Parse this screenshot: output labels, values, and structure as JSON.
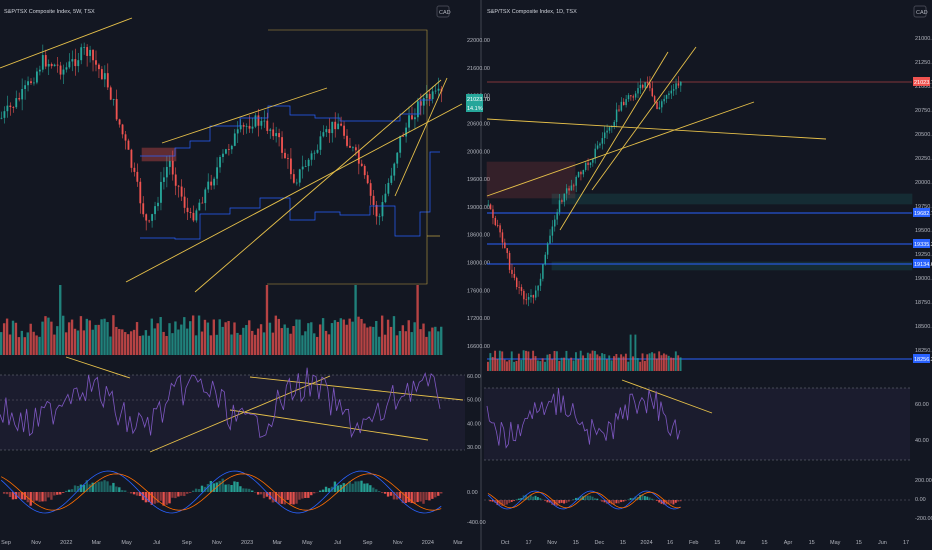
{
  "colors": {
    "background": "#131722",
    "up": "#26a69a",
    "down": "#ef5350",
    "trendline": "#e6c04a",
    "level_line": "#2962ff",
    "rsi_line": "#7e57c2",
    "macd_line": "#2962ff",
    "signal_line": "#ff6d00"
  },
  "left_chart": {
    "title": "S&P/TSX Composite Index, 5W, TSX",
    "currency": "CAD",
    "price_axis": [
      "22000.00",
      "21600.00",
      "21000.00",
      "20600.00",
      "20000.00",
      "19600.00",
      "19000.00",
      "18600.00",
      "18000.00",
      "17600.00",
      "17200.00",
      "16600.00"
    ],
    "price_tags": [
      {
        "value": "21023.70",
        "color": "#26a69a"
      },
      {
        "value": "14.1%",
        "color": "#26a69a"
      }
    ],
    "rsi_axis": [
      "60.00",
      "50.00",
      "40.00",
      "30.00"
    ],
    "macd_axis": [
      "0.00",
      "-400.00"
    ],
    "time_axis": [
      "Sep",
      "Nov",
      "2022",
      "Mar",
      "May",
      "Jul",
      "Sep",
      "Nov",
      "2023",
      "Mar",
      "May",
      "Jul",
      "Sep",
      "Nov",
      "2024",
      "Mar"
    ]
  },
  "right_chart": {
    "title": "S&P/TSX Composite Index, 1D, TSX",
    "currency": "CAD",
    "price_axis": [
      "21000.00",
      "21250.00",
      "21000.00",
      "20750.00",
      "20500.00",
      "20250.00",
      "20000.00",
      "19750.00",
      "19500.00",
      "19250.00",
      "19000.00",
      "18750.00",
      "18500.00",
      "18250.00"
    ],
    "price_tags": [
      {
        "value": "21023.70",
        "color": "#ef5350"
      },
      {
        "value": "19682.72",
        "color": "#2962ff"
      },
      {
        "value": "19335.34",
        "color": "#2962ff"
      },
      {
        "value": "19134.61",
        "color": "#2962ff"
      },
      {
        "value": "18256.36",
        "color": "#2962ff"
      }
    ],
    "rsi_axis": [
      "60.00",
      "40.00"
    ],
    "macd_axis": [
      "200.00",
      "0.00",
      "-200.00"
    ],
    "time_axis": [
      "Oct",
      "17",
      "Nov",
      "15",
      "Dec",
      "15",
      "2024",
      "16",
      "Feb",
      "15",
      "Mar",
      "15",
      "Apr",
      "15",
      "May",
      "15",
      "Jun",
      "17"
    ]
  }
}
